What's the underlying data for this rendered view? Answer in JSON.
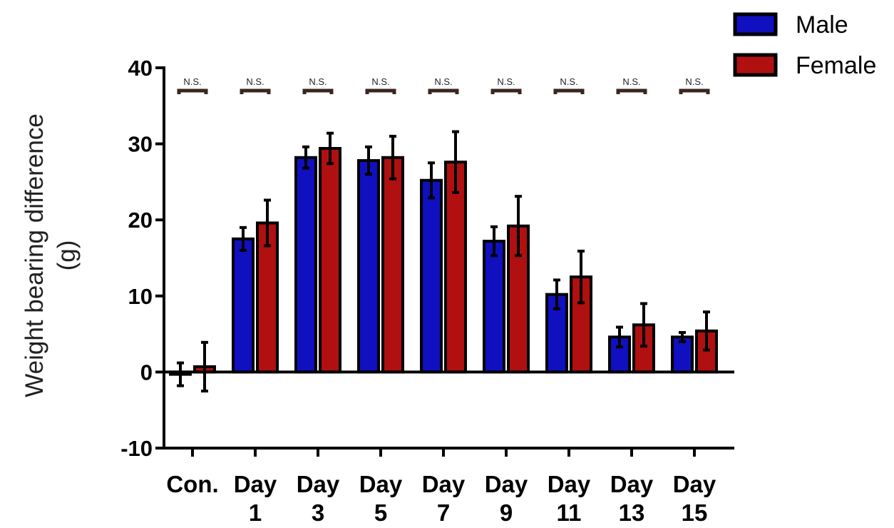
{
  "chart_data": {
    "type": "bar",
    "ylabel_line1": "Weight bearing difference",
    "ylabel_line2": "(g)",
    "ylim": [
      -10,
      40
    ],
    "yticks": [
      "-10",
      "0",
      "10",
      "20",
      "30",
      "40"
    ],
    "categories": [
      [
        "Con."
      ],
      [
        "Day",
        "1"
      ],
      [
        "Day",
        "3"
      ],
      [
        "Day",
        "5"
      ],
      [
        "Day",
        "7"
      ],
      [
        "Day",
        "9"
      ],
      [
        "Day",
        "11"
      ],
      [
        "Day",
        "13"
      ],
      [
        "Day",
        "15"
      ]
    ],
    "series": [
      {
        "name": "Male",
        "color": "#1010c0",
        "values": [
          -0.3,
          17.5,
          28.2,
          27.8,
          25.2,
          17.2,
          10.2,
          4.6,
          4.6
        ],
        "errors": [
          1.5,
          1.5,
          1.4,
          1.8,
          2.3,
          1.9,
          1.9,
          1.3,
          0.6
        ]
      },
      {
        "name": "Female",
        "color": "#b01010",
        "values": [
          0.7,
          19.6,
          29.4,
          28.2,
          27.6,
          19.2,
          12.5,
          6.2,
          5.4
        ],
        "errors": [
          3.2,
          3.0,
          2.0,
          2.8,
          4.0,
          3.9,
          3.4,
          2.8,
          2.5
        ]
      }
    ],
    "significance": [
      "N.S.",
      "N.S.",
      "N.S.",
      "N.S.",
      "N.S.",
      "N.S.",
      "N.S.",
      "N.S.",
      "N.S."
    ],
    "legend_position": "top-right",
    "grid": false
  }
}
